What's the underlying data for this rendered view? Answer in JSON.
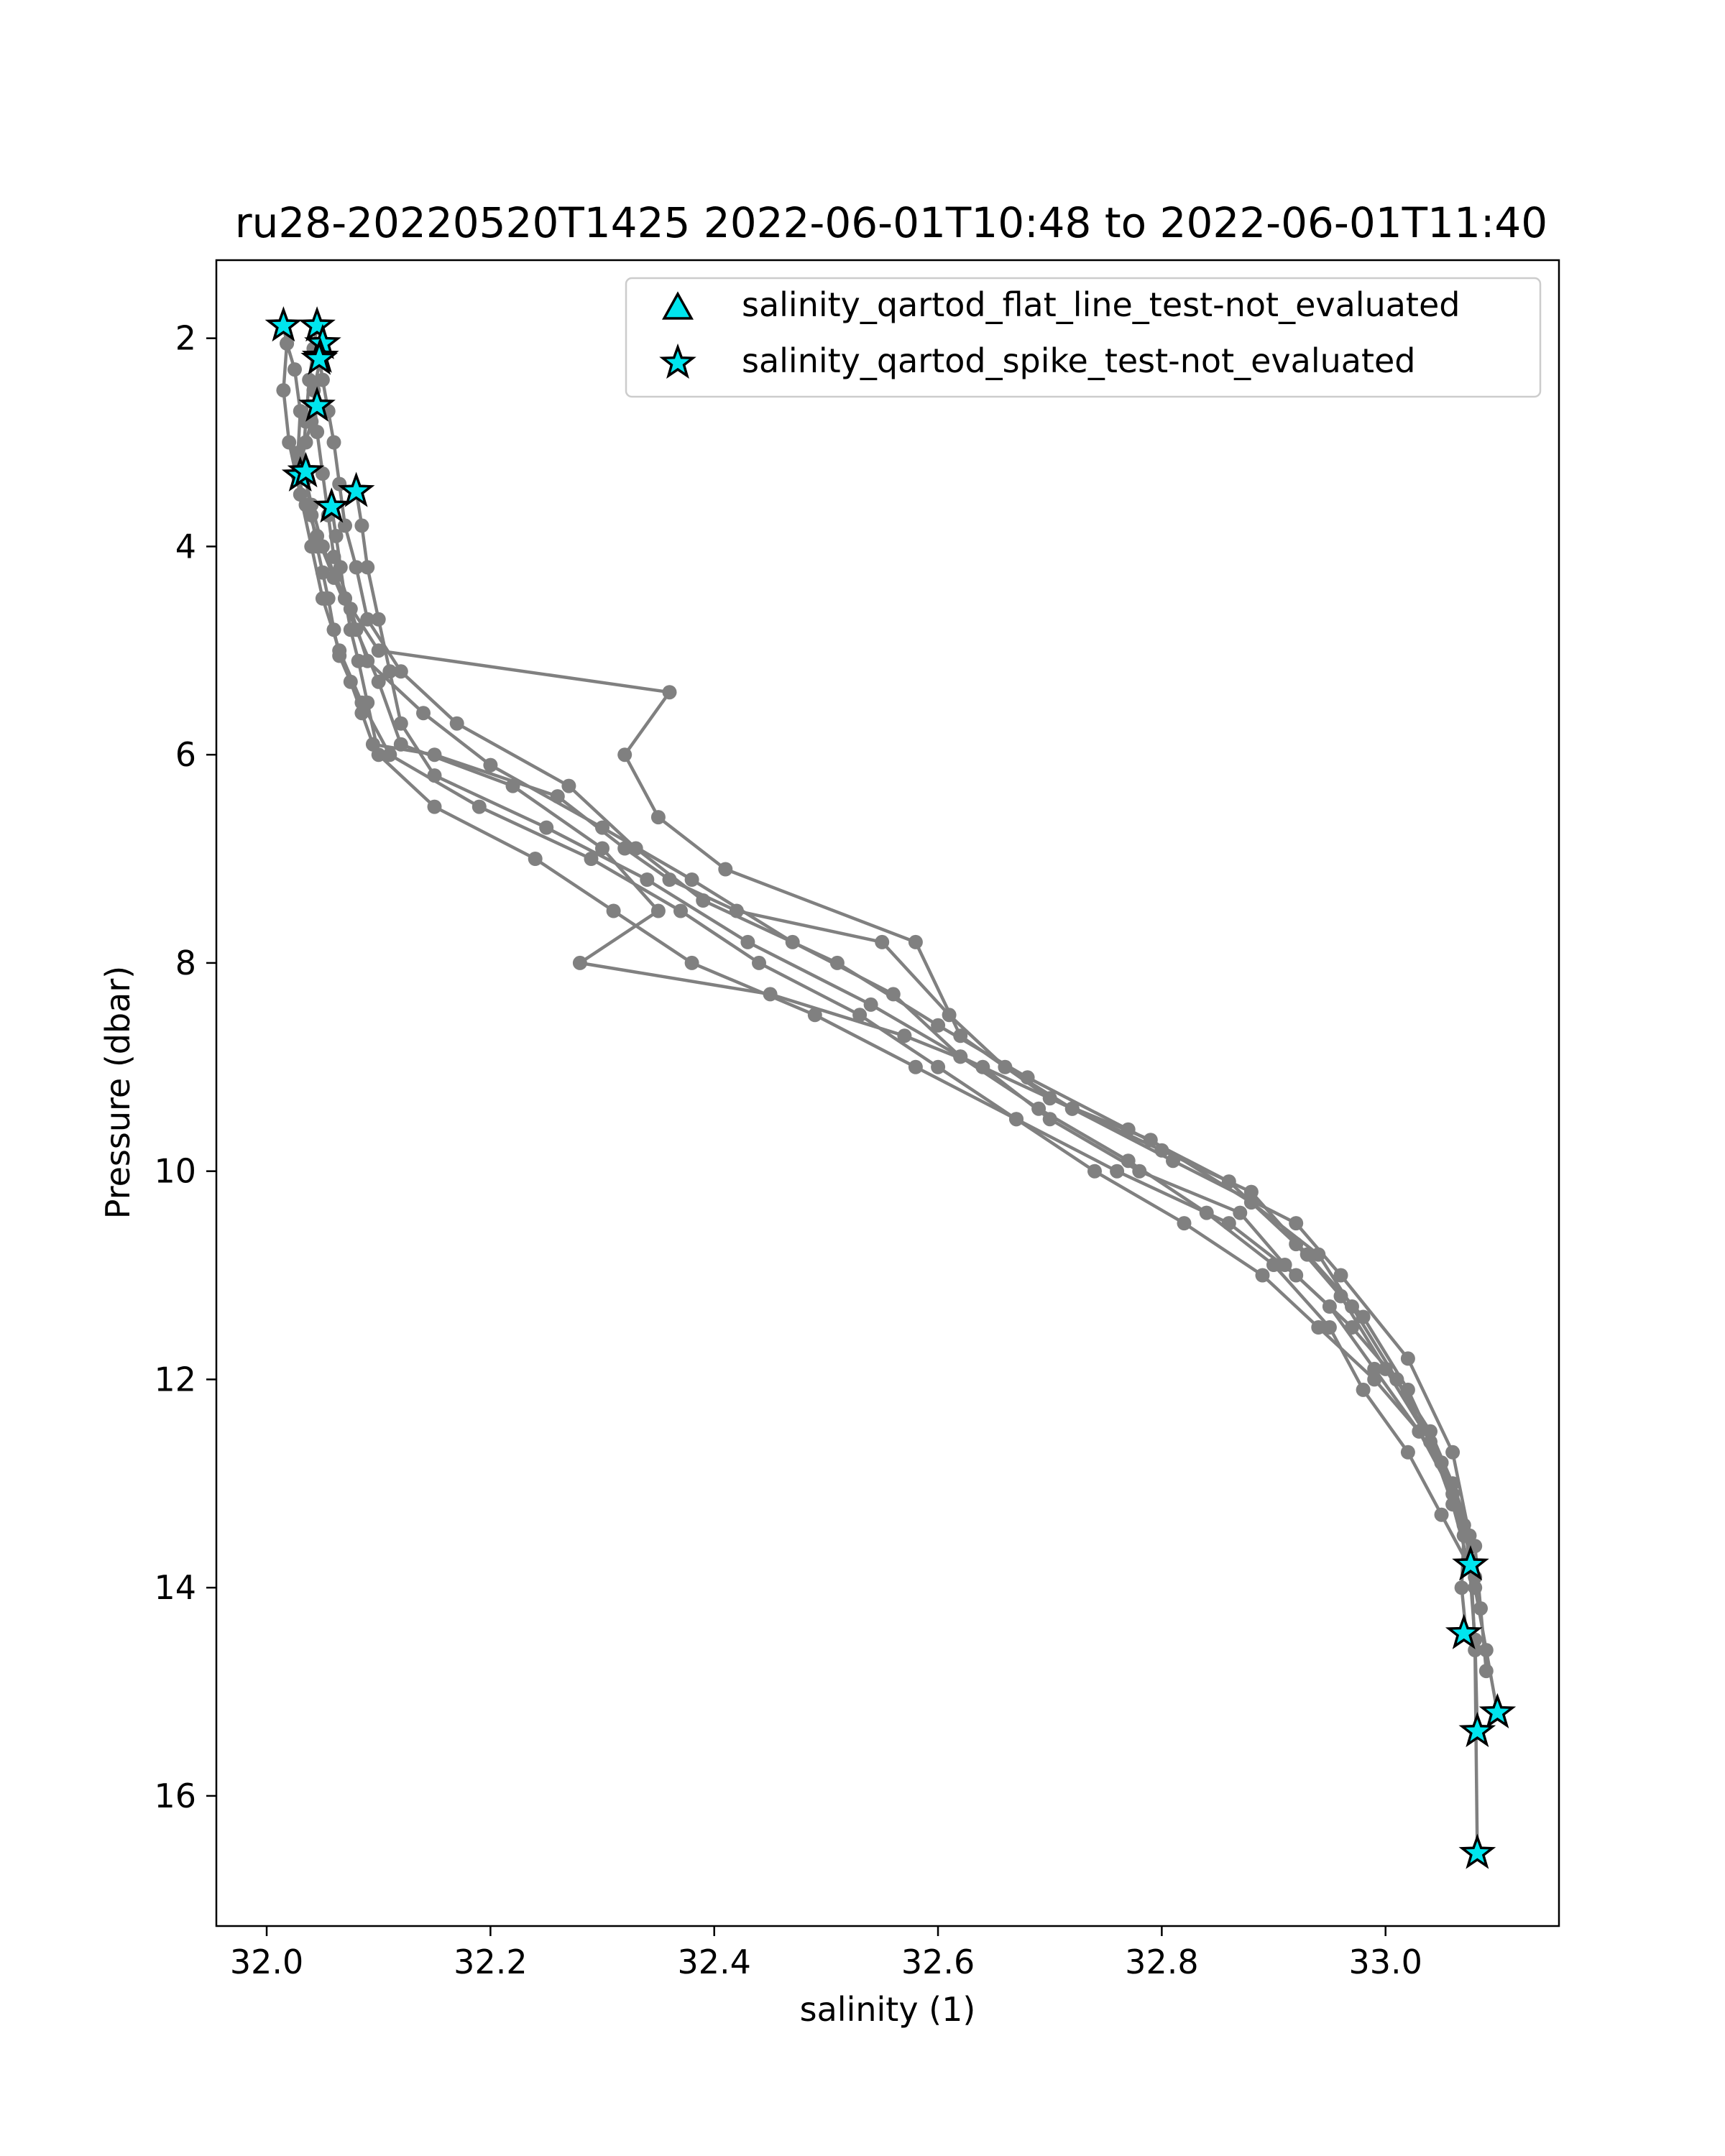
{
  "chart_data": {
    "type": "scatter",
    "title": "ru28-20220520T1425 2022-06-01T10:48 to 2022-06-01T11:40",
    "xlabel": "salinity (1)",
    "ylabel": "Pressure (dbar)",
    "xlim": [
      31.955,
      33.155
    ],
    "ylim": [
      17.25,
      1.25
    ],
    "y_inverted": true,
    "grid": false,
    "legend_position": "top-right",
    "x_ticks": [
      32.0,
      32.2,
      32.4,
      32.6,
      32.8,
      33.0
    ],
    "x_tick_labels": [
      "32.0",
      "32.2",
      "32.4",
      "32.6",
      "32.8",
      "33.0"
    ],
    "y_ticks": [
      2,
      4,
      6,
      8,
      10,
      12,
      14,
      16
    ],
    "y_tick_labels": [
      "2",
      "4",
      "6",
      "8",
      "10",
      "12",
      "14",
      "16"
    ],
    "profile_color": "#808080",
    "marker_color": "#00e5ee",
    "marker_edge_color": "#000000",
    "legend": [
      {
        "label": "salinity_qartod_flat_line_test-not_evaluated",
        "marker": "triangle"
      },
      {
        "label": "salinity_qartod_spike_test-not_evaluated",
        "marker": "star"
      }
    ],
    "series": [
      {
        "x": [
          32.015,
          32.018,
          32.025,
          32.03,
          32.028,
          32.035,
          32.04,
          32.045,
          32.05,
          32.055,
          32.06,
          32.065,
          32.075,
          32.085,
          32.095,
          32.15,
          32.26,
          32.32,
          32.36,
          32.42,
          32.55,
          32.61,
          32.66,
          32.72,
          32.81,
          32.92,
          32.96,
          33.02,
          33.06,
          33.075,
          33.08,
          33.082
        ],
        "y": [
          1.88,
          2.05,
          2.3,
          2.7,
          3.1,
          3.35,
          3.7,
          4.0,
          4.25,
          4.5,
          4.8,
          5.05,
          5.3,
          5.6,
          5.9,
          6.0,
          6.4,
          6.9,
          7.2,
          7.5,
          7.8,
          8.5,
          9.0,
          9.4,
          9.9,
          10.5,
          11.0,
          11.8,
          12.7,
          13.5,
          14.6,
          16.55
        ]
      },
      {
        "x": [
          32.045,
          32.042,
          32.038,
          32.035,
          32.032,
          32.04,
          32.05,
          32.07,
          32.1,
          32.36,
          32.32,
          32.35,
          32.41,
          32.58,
          32.62,
          32.7,
          32.79,
          32.88,
          32.94,
          32.97,
          33.01,
          33.05,
          33.07,
          33.068,
          33.072
        ],
        "y": [
          1.88,
          2.1,
          2.4,
          2.8,
          3.2,
          3.6,
          4.0,
          4.5,
          5.0,
          5.4,
          6.0,
          6.6,
          7.1,
          7.8,
          8.7,
          9.3,
          9.7,
          10.3,
          10.8,
          11.3,
          12.0,
          12.8,
          13.5,
          14.0,
          14.44
        ]
      },
      {
        "x": [
          32.05,
          32.048,
          32.042,
          32.045,
          32.05,
          32.055,
          32.06,
          32.075,
          32.09,
          32.14,
          32.2,
          32.3,
          32.38,
          32.47,
          32.56,
          32.62,
          32.72,
          32.8,
          32.88,
          32.93,
          32.98,
          33.02,
          33.05,
          33.07,
          33.08,
          33.09,
          33.1
        ],
        "y": [
          2.05,
          2.2,
          2.5,
          2.9,
          3.3,
          3.7,
          4.1,
          4.6,
          5.1,
          5.6,
          6.1,
          6.7,
          7.2,
          7.8,
          8.3,
          8.9,
          9.4,
          9.8,
          10.2,
          10.8,
          11.4,
          12.1,
          12.8,
          13.4,
          14.0,
          14.6,
          15.2
        ]
      },
      {
        "x": [
          32.047,
          32.05,
          32.055,
          32.06,
          32.065,
          32.07,
          32.08,
          32.09,
          32.12,
          32.17,
          32.27,
          32.33,
          32.39,
          32.51,
          32.6,
          32.68,
          32.77,
          32.86,
          32.92,
          32.96,
          33.0,
          33.04,
          33.06,
          33.075,
          33.08,
          33.082
        ],
        "y": [
          2.18,
          2.4,
          2.7,
          3.0,
          3.4,
          3.8,
          4.2,
          4.7,
          5.2,
          5.7,
          6.3,
          6.9,
          7.4,
          8.0,
          8.6,
          9.1,
          9.6,
          10.1,
          10.7,
          11.2,
          11.9,
          12.6,
          13.2,
          13.8,
          14.5,
          15.38
        ]
      },
      {
        "x": [
          32.045,
          32.04,
          32.035,
          32.03,
          32.028,
          32.035,
          32.045,
          32.06,
          32.08,
          32.1,
          32.12,
          32.22,
          32.3,
          32.35,
          32.28,
          32.45,
          32.57,
          32.64,
          32.7,
          32.78,
          32.87,
          32.91,
          32.95,
          32.99,
          33.03,
          33.06,
          33.072,
          33.076
        ],
        "y": [
          2.65,
          2.8,
          3.0,
          3.2,
          3.32,
          3.6,
          3.9,
          4.3,
          4.8,
          5.3,
          5.9,
          6.3,
          6.9,
          7.5,
          8.0,
          8.3,
          8.7,
          9.0,
          9.5,
          10.0,
          10.4,
          10.9,
          11.3,
          11.9,
          12.5,
          13.1,
          13.5,
          13.78
        ]
      },
      {
        "x": [
          32.08,
          32.085,
          32.09,
          32.1,
          32.11,
          32.12,
          32.15,
          32.25,
          32.34,
          32.43,
          32.54,
          32.62,
          32.69,
          32.77,
          32.84,
          32.9,
          32.95,
          32.98,
          33.02,
          33.05,
          33.08
        ],
        "y": [
          3.47,
          3.8,
          4.2,
          4.7,
          5.2,
          5.7,
          6.2,
          6.7,
          7.2,
          7.8,
          8.4,
          8.9,
          9.4,
          9.9,
          10.4,
          10.9,
          11.5,
          12.1,
          12.7,
          13.3,
          13.9
        ]
      },
      {
        "x": [
          32.058,
          32.062,
          32.066,
          32.07,
          32.075,
          32.082,
          32.09,
          32.1,
          32.15,
          32.24,
          32.31,
          32.38,
          32.49,
          32.58,
          32.67,
          32.74,
          32.82,
          32.89,
          32.94,
          32.99,
          33.03,
          33.06,
          33.07
        ],
        "y": [
          3.62,
          3.9,
          4.2,
          4.5,
          4.8,
          5.1,
          5.5,
          6.0,
          6.5,
          7.0,
          7.5,
          8.0,
          8.5,
          9.0,
          9.5,
          10.0,
          10.5,
          11.0,
          11.5,
          12.0,
          12.5,
          13.0,
          13.4
        ]
      },
      {
        "x": [
          32.018,
          32.015,
          32.02,
          32.03,
          32.04,
          32.05,
          32.065,
          32.085,
          32.11,
          32.19,
          32.29,
          32.37,
          32.44,
          32.53,
          32.6,
          32.67,
          32.76,
          32.86,
          32.92,
          32.97,
          33.01,
          33.04,
          33.06,
          33.08,
          33.085,
          33.09
        ],
        "y": [
          2.05,
          2.5,
          3.0,
          3.5,
          4.0,
          4.5,
          5.0,
          5.5,
          6.0,
          6.5,
          7.0,
          7.5,
          8.0,
          8.5,
          9.0,
          9.5,
          10.0,
          10.5,
          11.0,
          11.5,
          12.0,
          12.5,
          13.0,
          13.6,
          14.2,
          14.8
        ]
      }
    ],
    "spike_markers": {
      "x": [
        32.015,
        32.045,
        32.05,
        32.048,
        32.047,
        32.045,
        32.03,
        32.035,
        32.08,
        32.058,
        33.076,
        33.07,
        33.1,
        33.082,
        33.082
      ],
      "y": [
        1.88,
        1.88,
        2.05,
        2.18,
        2.2,
        2.65,
        3.32,
        3.28,
        3.47,
        3.62,
        13.78,
        14.44,
        15.2,
        15.38,
        16.55
      ]
    },
    "flat_line_markers": {
      "x": [],
      "y": []
    }
  }
}
